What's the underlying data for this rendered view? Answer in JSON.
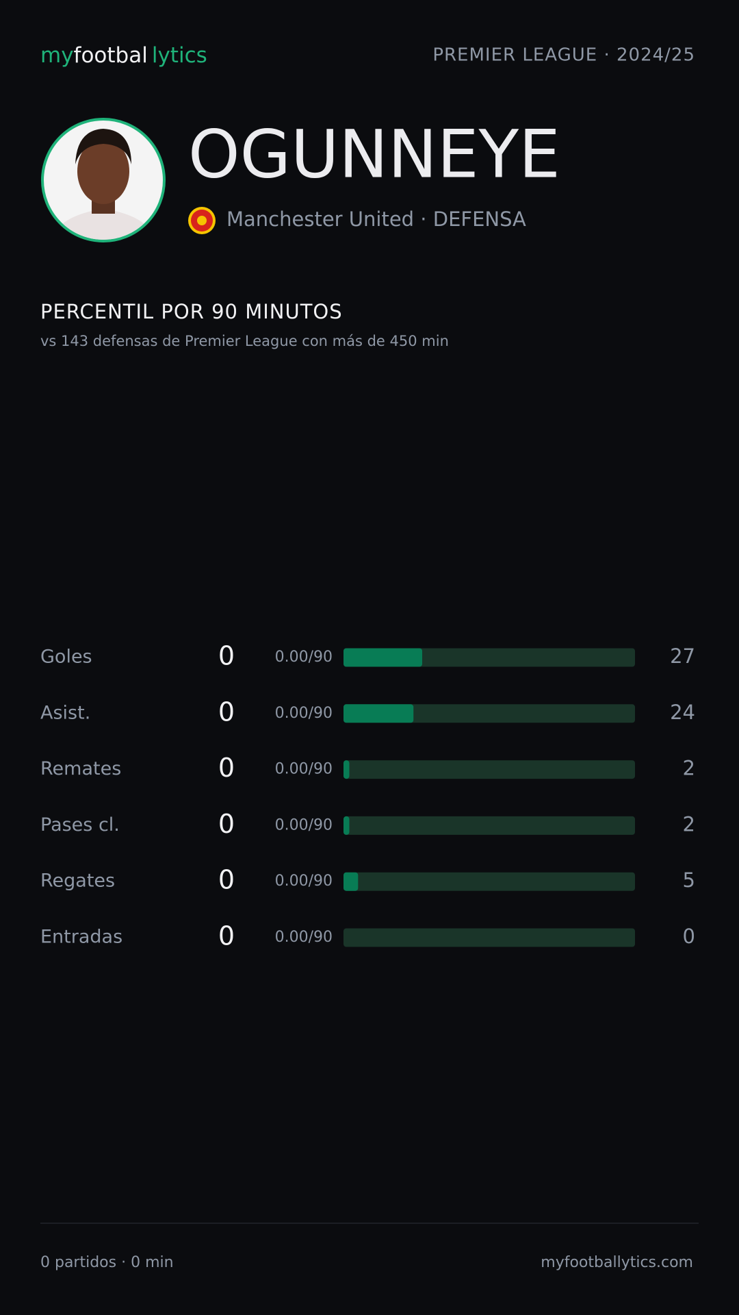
{
  "header": {
    "logo": [
      "my",
      "footbal",
      "lytics"
    ],
    "league": "PREMIER LEAGUE · 2024/25"
  },
  "player": {
    "name": "OGUNNEYE",
    "club_position": "Manchester United · DEFENSA"
  },
  "section": {
    "title": "PERCENTIL POR 90 MINUTOS",
    "subtitle": "vs 143 defensas de Premier League con más de 450 min"
  },
  "stats": {
    "scale": [
      0,
      100
    ],
    "rows": [
      {
        "label": "Goles",
        "value": 0,
        "per90": "0.00/90",
        "percentile": 27
      },
      {
        "label": "Asist.",
        "value": 0,
        "per90": "0.00/90",
        "percentile": 24
      },
      {
        "label": "Remates",
        "value": 0,
        "per90": "0.00/90",
        "percentile": 2
      },
      {
        "label": "Pases cl.",
        "value": 0,
        "per90": "0.00/90",
        "percentile": 2
      },
      {
        "label": "Regates",
        "value": 0,
        "per90": "0.00/90",
        "percentile": 5
      },
      {
        "label": "Entradas",
        "value": 0,
        "per90": "0.00/90",
        "percentile": 0
      }
    ]
  },
  "footer": {
    "summary": "0 partidos · 0 min",
    "site": "myfootballytics.com"
  }
}
